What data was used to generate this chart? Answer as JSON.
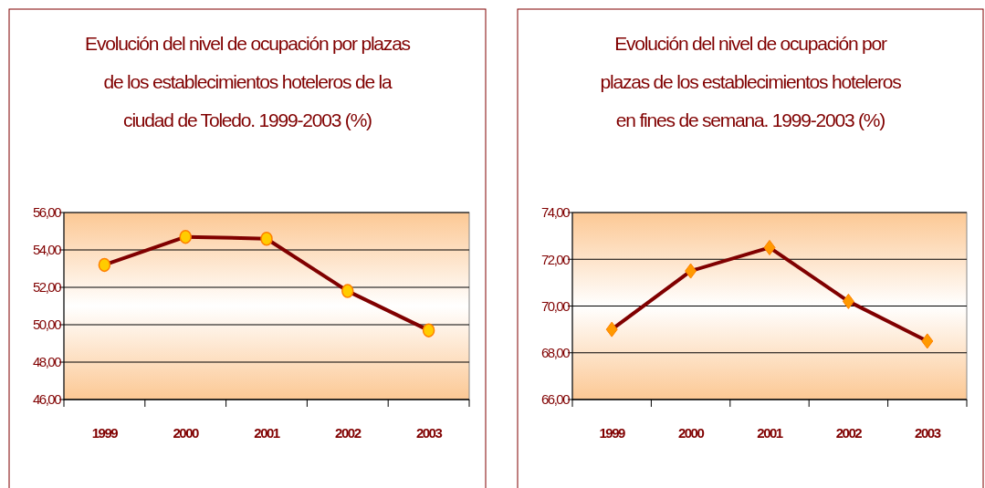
{
  "chart_data": [
    {
      "type": "line",
      "title": "Evolución del nivel de ocupación por plazas de los establecimientos hoteleros de la ciudad de Toledo. 1999-2003 (%)",
      "categories": [
        "1999",
        "2000",
        "2001",
        "2002",
        "2003"
      ],
      "series": [
        {
          "color": "#800000",
          "values": [
            53.2,
            54.7,
            54.6,
            51.8,
            49.7
          ]
        }
      ],
      "ylim": [
        46,
        56
      ],
      "yticks": [
        {
          "value": 46,
          "label": "46,00"
        },
        {
          "value": 48,
          "label": "48,00"
        },
        {
          "value": 50,
          "label": "50,00"
        },
        {
          "value": 52,
          "label": "52,00"
        },
        {
          "value": 54,
          "label": "54,00"
        },
        {
          "value": 56,
          "label": "56,00"
        }
      ],
      "grid": "y",
      "marker": "circle"
    },
    {
      "type": "line",
      "title": "Evolución del nivel de ocupación por plazas de los establecimientos hoteleros en fines de semana. 1999-2003 (%)",
      "categories": [
        "1999",
        "2000",
        "2001",
        "2002",
        "2003"
      ],
      "series": [
        {
          "color": "#800000",
          "values": [
            69.0,
            71.5,
            72.5,
            70.2,
            68.5
          ]
        }
      ],
      "ylim": [
        66,
        74
      ],
      "yticks": [
        {
          "value": 66,
          "label": "66,00"
        },
        {
          "value": 68,
          "label": "68,00"
        },
        {
          "value": 70,
          "label": "70,00"
        },
        {
          "value": 72,
          "label": "72,00"
        },
        {
          "value": 74,
          "label": "74,00"
        }
      ],
      "grid": "y",
      "marker": "diamond"
    }
  ]
}
